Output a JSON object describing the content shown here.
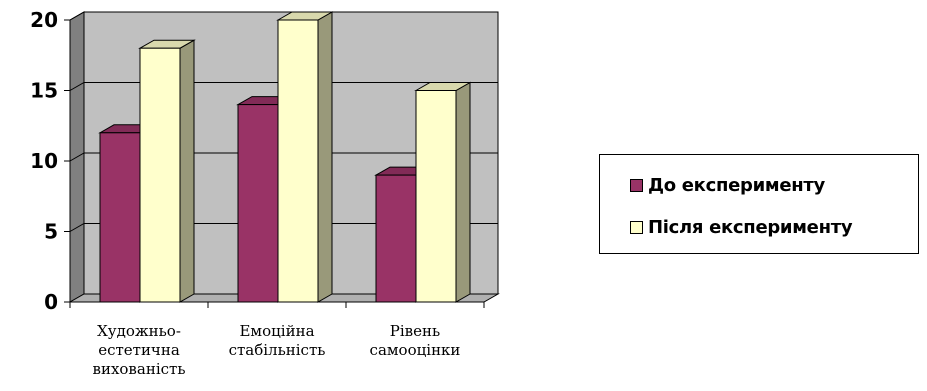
{
  "chart_data": {
    "type": "bar",
    "categories": [
      [
        "Художньо-",
        "естетична",
        "вихованість"
      ],
      [
        "Емоційна",
        "стабільність"
      ],
      [
        "Рівень",
        "самооцінки"
      ]
    ],
    "series": [
      {
        "name": "До експерименту",
        "values": [
          12,
          14,
          9
        ],
        "color": "#993366"
      },
      {
        "name": "Після експерименту",
        "values": [
          18,
          20,
          15
        ],
        "color": "#ffffcc"
      }
    ],
    "ylim": [
      0,
      20
    ],
    "yticks": [
      "0",
      "5",
      "10",
      "15",
      "20"
    ],
    "grid": true,
    "three_d": true,
    "legend_position": "right",
    "wall_color": "#c0c0c0"
  }
}
